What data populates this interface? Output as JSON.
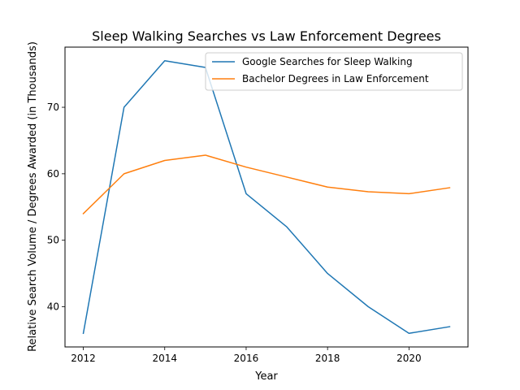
{
  "chart_data": {
    "type": "line",
    "title": "Sleep Walking Searches vs Law Enforcement Degrees",
    "xlabel": "Year",
    "ylabel": "Relative Search Volume / Degrees Awarded (in Thousands)",
    "x": [
      2012,
      2013,
      2014,
      2015,
      2016,
      2017,
      2018,
      2019,
      2020,
      2021
    ],
    "series": [
      {
        "name": "Google Searches for Sleep Walking",
        "color": "#1f77b4",
        "values": [
          36,
          70,
          77,
          76,
          57,
          52,
          45,
          40,
          36,
          37
        ]
      },
      {
        "name": "Bachelor Degrees in Law Enforcement",
        "color": "#ff7f0e",
        "values": [
          54,
          60,
          62,
          62.8,
          61,
          59.5,
          58,
          57.3,
          57,
          57.9
        ]
      }
    ],
    "xticks": [
      2012,
      2014,
      2016,
      2018,
      2020
    ],
    "yticks": [
      40,
      50,
      60,
      70
    ],
    "xlim": [
      2011.55,
      2021.45
    ],
    "ylim": [
      33.95,
      79.05
    ],
    "grid": false,
    "legend_position": "top-right"
  }
}
